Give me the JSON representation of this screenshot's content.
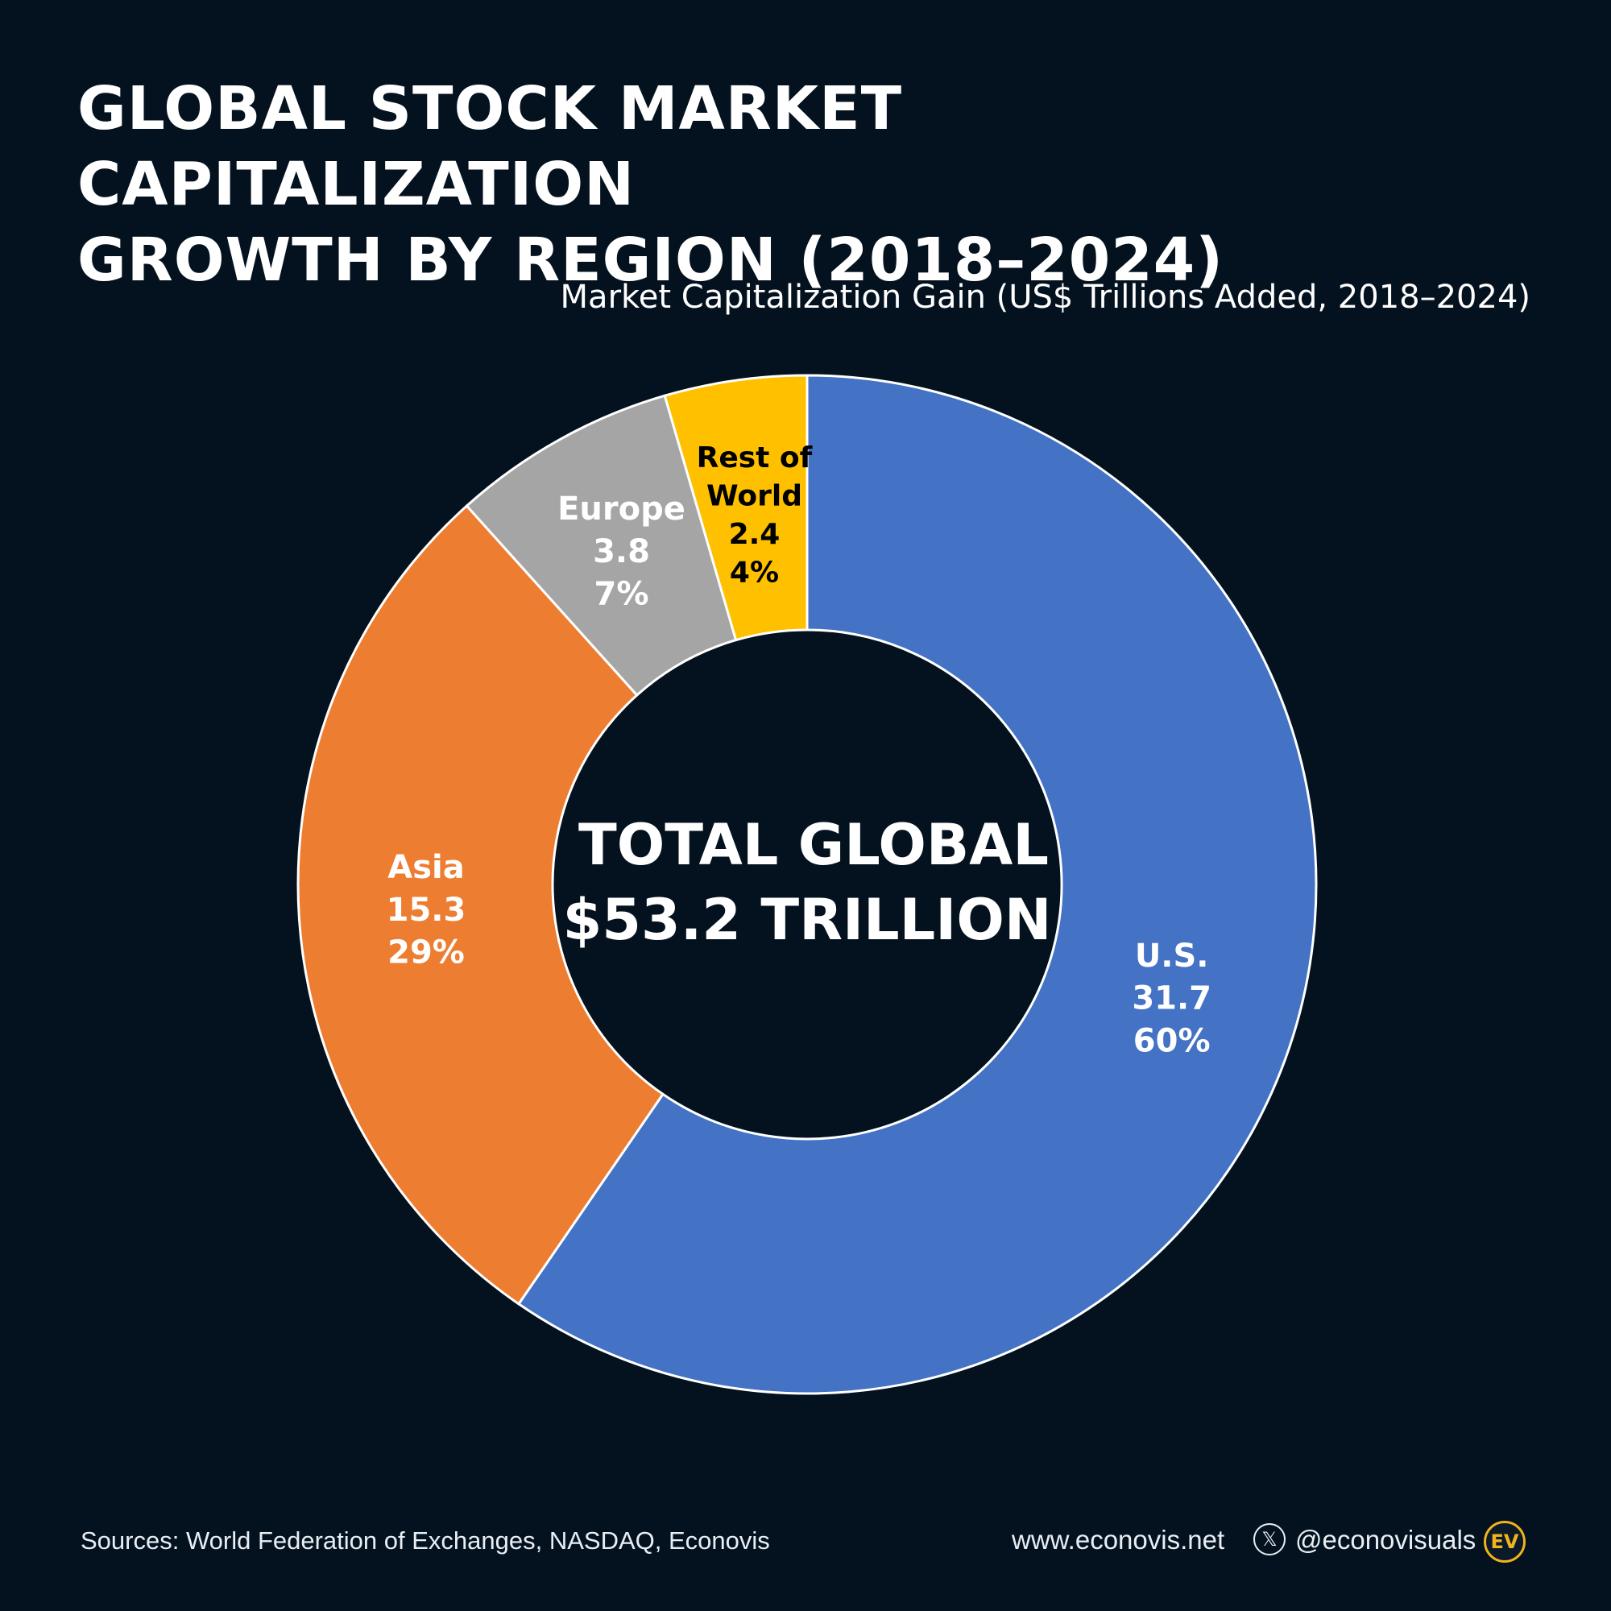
{
  "header": {
    "title_line1": "Global Stock Market Capitalization",
    "title_line2": "Growth by Region (2018–2024)",
    "subtitle": "Market Capitalization Gain (US$ Trillions Added, 2018–2024)"
  },
  "chart_data": {
    "type": "pie",
    "variant": "donut",
    "title": "Global Stock Market Capitalization Growth by Region (2018–2024)",
    "subtitle": "Market Capitalization Gain (US$ Trillions Added, 2018–2024)",
    "unit": "US$ Trillions",
    "slices": [
      {
        "label": "U.S.",
        "value": 31.7,
        "value_text": "31.7",
        "percent": 60,
        "percent_text": "60%",
        "color": "#4472c4",
        "label_color": "#ffffff"
      },
      {
        "label": "Asia",
        "value": 15.3,
        "value_text": "15.3",
        "percent": 29,
        "percent_text": "29%",
        "color": "#ed7d31",
        "label_color": "#ffffff"
      },
      {
        "label": "Europe",
        "value": 3.8,
        "value_text": "3.8",
        "percent": 7,
        "percent_text": "7%",
        "color": "#a5a5a5",
        "label_color": "#ffffff"
      },
      {
        "label": "Rest of World",
        "label_lines": [
          "Rest of",
          "World"
        ],
        "value": 2.4,
        "value_text": "2.4",
        "percent": 4,
        "percent_text": "4%",
        "color": "#ffc000",
        "label_color": "#000000"
      }
    ],
    "center_text_line1": "TOTAL GLOBAL",
    "center_text_line2": "$53.2 TRILLION",
    "background": "#04121f",
    "slice_border": "#ffffff"
  },
  "footer": {
    "sources": "Sources: World Federation of Exchanges, NASDAQ, Econovis",
    "website": "www.econovis.net",
    "x_icon_glyph": "𝕏",
    "x_icon": "x-logo-icon",
    "handle": "@econovisuals",
    "logo_text": "EV",
    "logo_color": "#f2b41c"
  }
}
